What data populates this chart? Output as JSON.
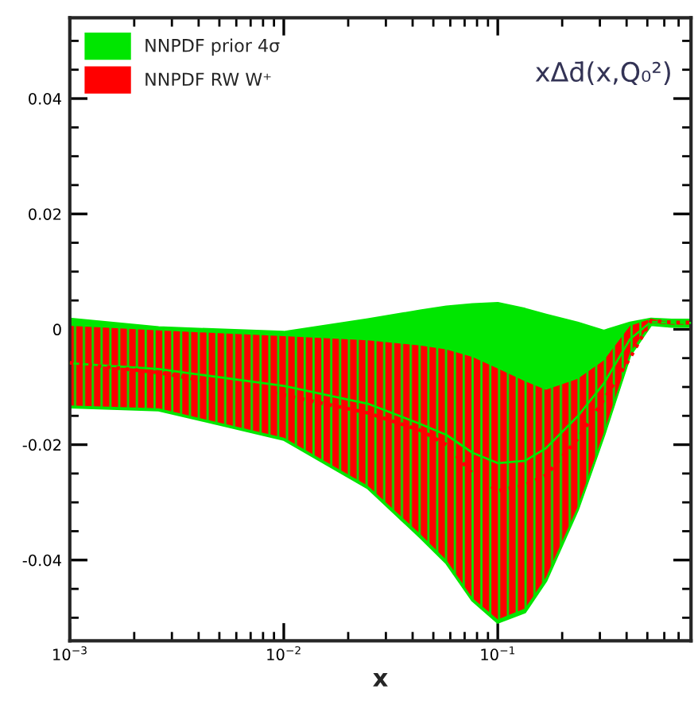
{
  "chart_data": {
    "type": "line",
    "title": "xΔd̄(x,Q₀²)",
    "xlabel": "x",
    "x": [
      0.001,
      0.0026,
      0.01,
      0.0247,
      0.0434,
      0.0575,
      0.0762,
      0.1,
      0.134,
      0.168,
      0.236,
      0.313,
      0.415,
      0.52,
      0.65,
      0.8
    ],
    "series": [
      {
        "name": "NNPDF prior 4σ",
        "color": "#00e600",
        "values": [
          -0.0059,
          -0.0069,
          -0.0098,
          -0.0129,
          -0.0164,
          -0.0183,
          -0.0214,
          -0.0232,
          -0.0228,
          -0.0206,
          -0.0151,
          -0.0094,
          -0.0017,
          0.0013,
          0.0011,
          0.0011
        ],
        "lower": [
          -0.0135,
          -0.014,
          -0.0191,
          -0.0275,
          -0.036,
          -0.0405,
          -0.047,
          -0.0508,
          -0.049,
          -0.0436,
          -0.0313,
          -0.0184,
          -0.0045,
          0.0008,
          0.0005,
          0.0005
        ],
        "upper": [
          0.0018,
          0.0003,
          -0.0005,
          0.0017,
          0.0032,
          0.0039,
          0.0043,
          0.0045,
          0.0035,
          0.0025,
          0.0011,
          -0.0003,
          0.0011,
          0.0018,
          0.0016,
          0.0016
        ]
      },
      {
        "name": "NNPDF RW W⁺",
        "color": "#ff0000",
        "line_style": "dotted",
        "values": [
          -0.0058,
          -0.0075,
          -0.0114,
          -0.0145,
          -0.0175,
          -0.02,
          -0.025,
          -0.028,
          -0.027,
          -0.0253,
          -0.019,
          -0.0122,
          -0.005,
          0.0015,
          0.0012,
          0.0012
        ],
        "lower": [
          -0.0132,
          -0.0137,
          -0.0188,
          -0.0271,
          -0.0355,
          -0.04,
          -0.0466,
          -0.0503,
          -0.0484,
          -0.043,
          -0.0308,
          -0.0179,
          -0.004,
          0.0011,
          0.0008,
          0.0008
        ],
        "upper": [
          0.0006,
          -0.0002,
          -0.0012,
          -0.0019,
          -0.0028,
          -0.0035,
          -0.0048,
          -0.0068,
          -0.009,
          -0.0105,
          -0.0086,
          -0.0054,
          0.0006,
          0.0018,
          0.0012,
          0.0012
        ]
      }
    ],
    "log": "x",
    "xlim": [
      0.001,
      0.8
    ],
    "ylim": [
      -0.054,
      0.054
    ],
    "xticks": [
      {
        "value": 0.001,
        "label": "10$^{−3}$"
      },
      {
        "value": 0.01,
        "label": "10$^{−2}$"
      },
      {
        "value": 0.1,
        "label": "10$^{−1}$"
      }
    ],
    "yticks": [
      {
        "value": -0.04,
        "label": "-0.04"
      },
      {
        "value": -0.02,
        "label": "-0.02"
      },
      0,
      0.02,
      0.04
    ],
    "grid": false,
    "legend": "top left"
  }
}
